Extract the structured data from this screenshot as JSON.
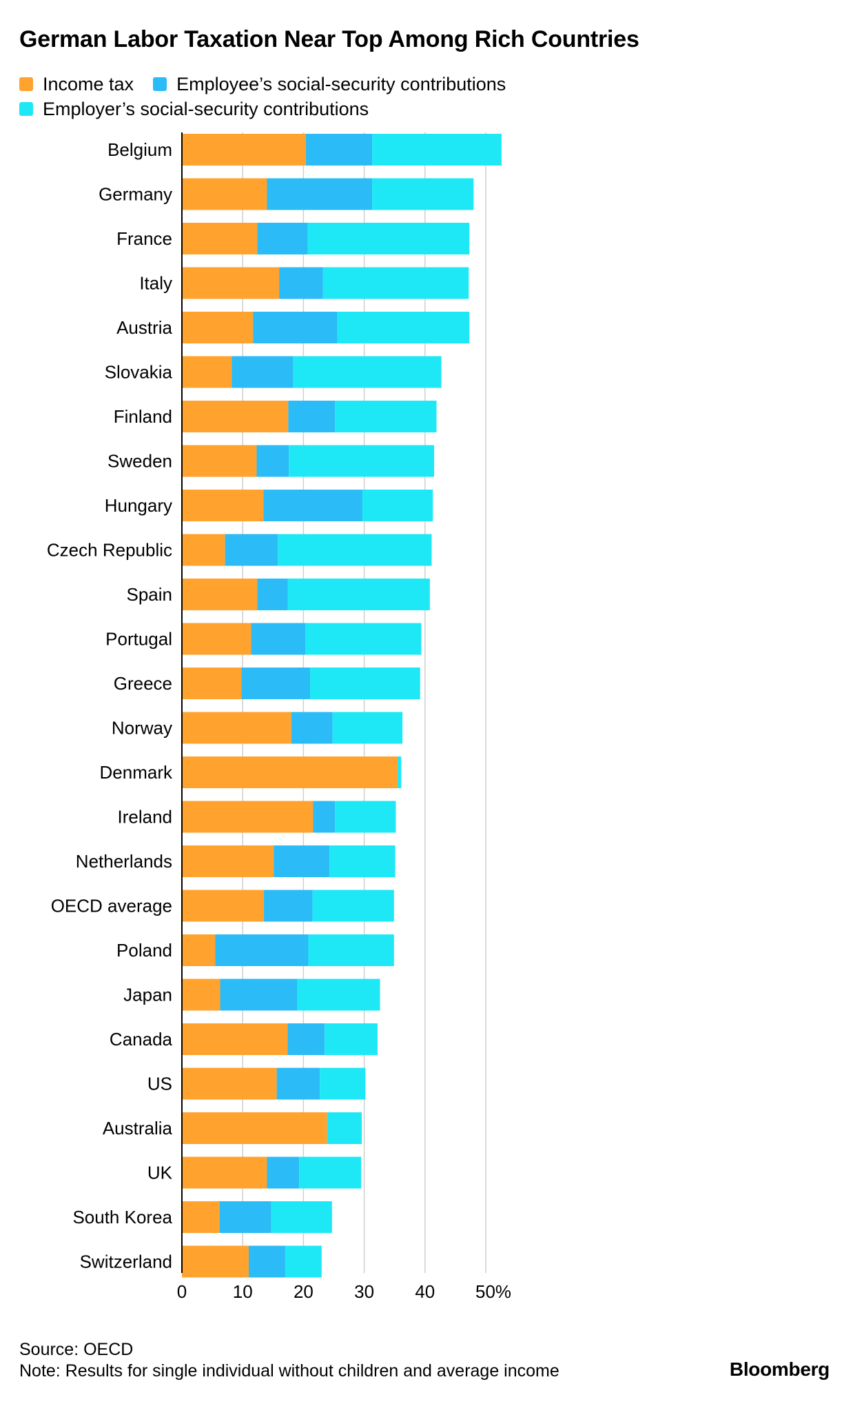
{
  "title": "German Labor Taxation Near Top Among Rich Countries",
  "legend": {
    "items": [
      {
        "label": "Income tax",
        "color": "#FFA22E"
      },
      {
        "label": "Employee’s social-security contributions",
        "color": "#2BBBF6"
      },
      {
        "label": "Employer’s social-security contributions",
        "color": "#1EE8F6"
      }
    ]
  },
  "footer": {
    "source": "Source: OECD",
    "note": "Note: Results for single individual without children and average income"
  },
  "brand": "Bloomberg",
  "chart_data": {
    "type": "bar",
    "orientation": "horizontal",
    "stacked": true,
    "title": "German Labor Taxation Near Top Among Rich Countries",
    "xlabel": "",
    "ylabel": "",
    "xlim": [
      0,
      53
    ],
    "xticks": [
      0,
      10,
      20,
      30,
      40,
      50
    ],
    "xtick_labels": [
      "0",
      "10",
      "20",
      "30",
      "40",
      "50%"
    ],
    "grid": "vertical",
    "categories": [
      "Belgium",
      "Germany",
      "France",
      "Italy",
      "Austria",
      "Slovakia",
      "Finland",
      "Sweden",
      "Hungary",
      "Czech Republic",
      "Spain",
      "Portugal",
      "Greece",
      "Norway",
      "Denmark",
      "Ireland",
      "Netherlands",
      "OECD average",
      "Poland",
      "Japan",
      "Canada",
      "US",
      "Australia",
      "UK",
      "South Korea",
      "Switzerland"
    ],
    "series": [
      {
        "name": "Income tax",
        "color": "#FFA22E",
        "values": [
          20.4,
          14.0,
          12.4,
          16.0,
          11.7,
          8.2,
          17.5,
          12.3,
          13.4,
          7.1,
          12.4,
          11.4,
          9.8,
          18.0,
          35.5,
          21.6,
          15.1,
          13.5,
          5.5,
          6.3,
          17.4,
          15.6,
          23.9,
          14.0,
          6.2,
          11.0
        ]
      },
      {
        "name": "Employee’s social-security contributions",
        "color": "#2BBBF6",
        "values": [
          10.9,
          17.3,
          8.3,
          7.2,
          13.9,
          10.1,
          7.7,
          5.3,
          16.3,
          8.7,
          5.0,
          8.9,
          11.3,
          6.8,
          0.0,
          3.6,
          9.2,
          8.0,
          15.3,
          12.7,
          6.1,
          7.1,
          0.0,
          5.3,
          8.5,
          6.0
        ]
      },
      {
        "name": "Employer’s social-security contributions",
        "color": "#1EE8F6",
        "values": [
          21.3,
          16.7,
          26.6,
          24.0,
          21.7,
          24.4,
          16.7,
          23.9,
          11.6,
          25.3,
          23.4,
          19.1,
          18.1,
          11.5,
          0.6,
          10.0,
          10.8,
          13.4,
          14.1,
          13.6,
          8.7,
          7.5,
          5.7,
          10.2,
          10.0,
          6.0
        ]
      }
    ]
  }
}
